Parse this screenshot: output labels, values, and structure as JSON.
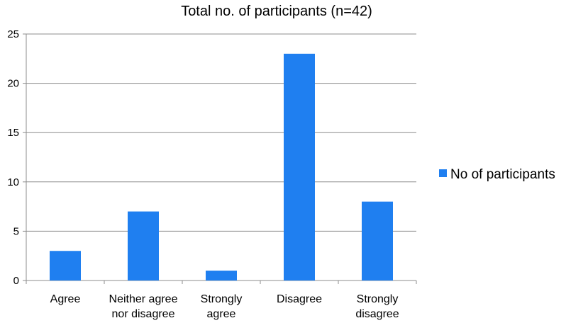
{
  "chart_data": {
    "type": "bar",
    "title": "Total no. of participants (n=42)",
    "xlabel": "",
    "ylabel": "",
    "categories": [
      [
        "Agree"
      ],
      [
        "Neither agree",
        "nor disagree"
      ],
      [
        "Strongly",
        "agree"
      ],
      [
        "Disagree"
      ],
      [
        "Strongly",
        "disagree"
      ]
    ],
    "series": [
      {
        "name": "No of participants",
        "values": [
          3,
          7,
          1,
          23,
          8
        ],
        "color": "#1f7ff0"
      }
    ],
    "ylim": [
      0,
      25
    ],
    "yticks": [
      0,
      5,
      10,
      15,
      20,
      25
    ],
    "grid": true,
    "legend_position": "right"
  }
}
